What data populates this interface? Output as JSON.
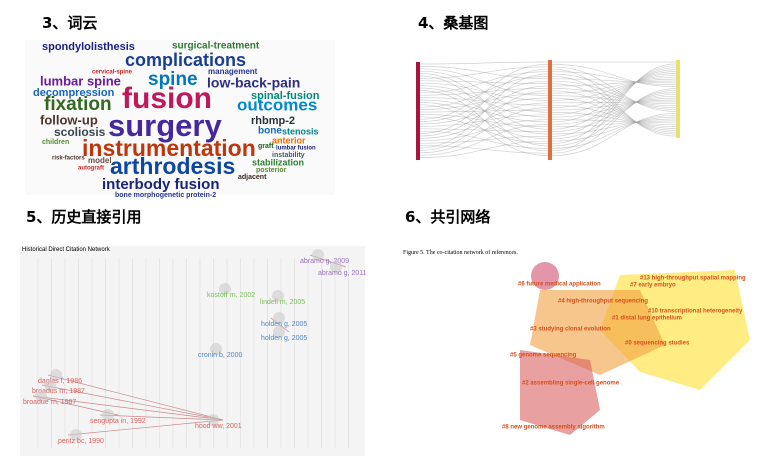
{
  "panels": [
    {
      "heading": "3、词云",
      "words": [
        "spondylolisthesis",
        "surgical-treatment",
        "complications",
        "cervical-spine",
        "management",
        "lumbar spine",
        "spine",
        "low-back-pain",
        "decompression",
        "fusion",
        "outcomes",
        "fixation",
        "spinal-fusion",
        "follow-up",
        "surgery",
        "rhbmp-2",
        "scoliosis",
        "bone",
        "stenosis",
        "anterior",
        "instrumentation",
        "instability",
        "arthrodesis",
        "stabilization",
        "interbody fusion",
        "bone morphogenetic protein-2",
        "model",
        "autograft",
        "risk-factors",
        "posterior",
        "adjacent",
        "graft",
        "lumbar fusion",
        "children"
      ]
    },
    {
      "heading": "4、桑基图"
    },
    {
      "heading": "5、历史直接引用",
      "title": "Historical Direct Citation Network",
      "nodes": [
        "abramo g, 2009",
        "abramo g, 2011",
        "kostoff rn, 2002",
        "lindell m, 2005",
        "holden g, 2005",
        "holden g, 2005",
        "cronin b, 2000",
        "daglas f, 1986",
        "broadus rn, 1987",
        "broadue rn, 1987",
        "sengupta in, 1992",
        "hood ww, 2001",
        "peritz bc, 1990"
      ]
    },
    {
      "heading": "6、共引网络",
      "caption": "Figure 5. The co-citation network of references.",
      "clusters": [
        "#13 high-throughput spatial mapping",
        "#7 early embryo",
        "#6 future medical application",
        "#4 high-throughput sequencing",
        "#10 transcriptional heterogeneity",
        "#1 distal lung epithelium",
        "#3 studying clonal evolution",
        "#0 sequencing studies",
        "#5 genome sequencing",
        "#2 assembling single-cell genome",
        "#8 new genome assembly algorithm"
      ]
    }
  ]
}
